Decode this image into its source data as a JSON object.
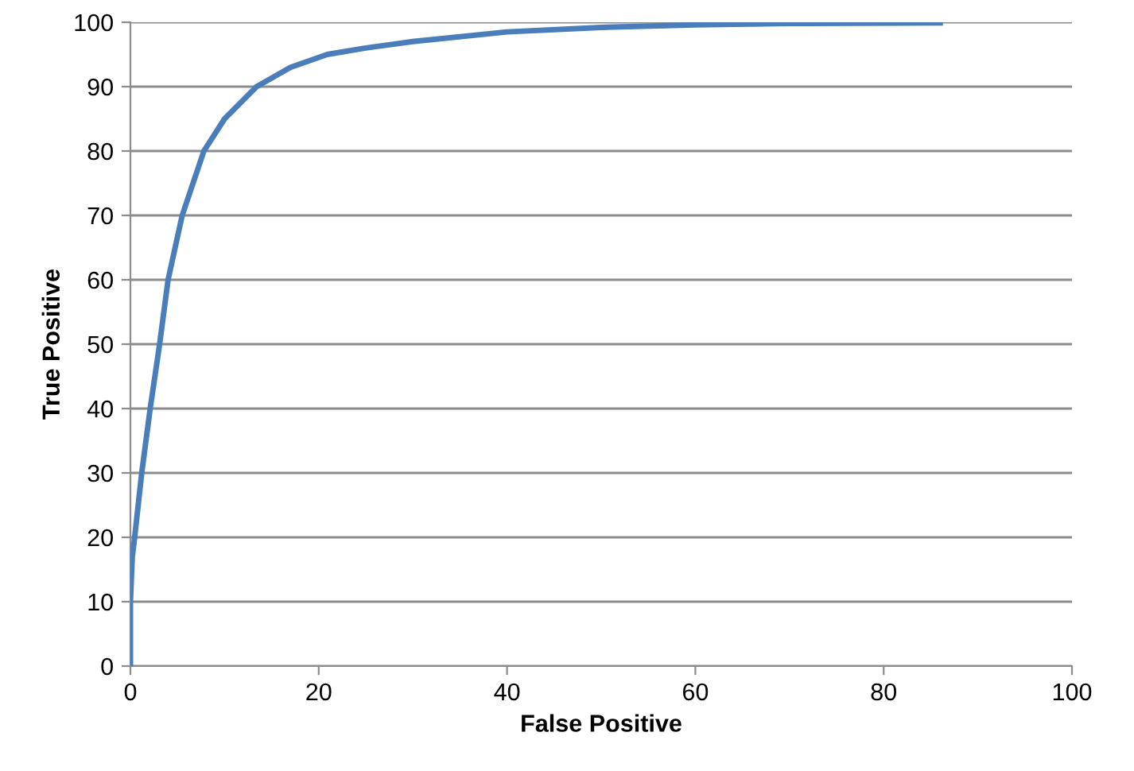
{
  "chart_data": {
    "type": "line",
    "xlabel": "False Positive",
    "ylabel": "True Positive",
    "series": [
      {
        "color": "#4a7ebb",
        "x": [
          0,
          0,
          0.2,
          0.45,
          1.2,
          2.1,
          3.1,
          4.0,
          5.5,
          7.8,
          10,
          13.4,
          17,
          20.9,
          25,
          30,
          40,
          50,
          60,
          70,
          86
        ],
        "values": [
          0,
          10,
          17,
          20,
          30,
          40,
          50,
          60,
          70,
          80,
          85,
          90,
          93,
          95,
          96,
          97,
          98.5,
          99.2,
          99.6,
          99.8,
          99.9
        ]
      }
    ],
    "xlim": [
      0,
      100
    ],
    "ylim": [
      0,
      100
    ],
    "xticks": [
      0,
      20,
      40,
      60,
      80,
      100
    ],
    "yticks": [
      0,
      10,
      20,
      30,
      40,
      50,
      60,
      70,
      80,
      90,
      100
    ],
    "grid": "y",
    "marker": "none",
    "line_style": "solid"
  }
}
